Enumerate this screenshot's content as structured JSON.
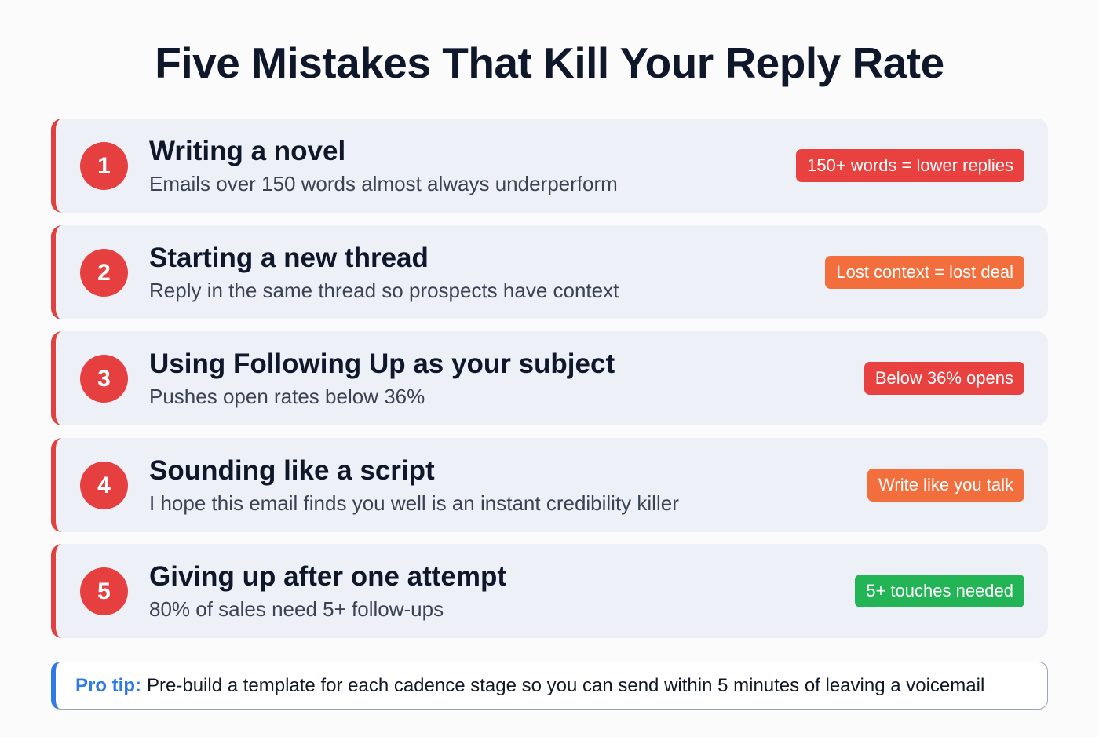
{
  "title": "Five Mistakes That Kill Your Reply Rate",
  "mistakes": [
    {
      "number": "1",
      "title": "Writing a novel",
      "subtitle": "Emails over 150 words almost always underperform",
      "badge": "150+ words = lower replies",
      "badge_color": "#e8413f"
    },
    {
      "number": "2",
      "title": "Starting a new thread",
      "subtitle": "Reply in the same thread so prospects have context",
      "badge": "Lost context = lost deal",
      "badge_color": "#f26e3c"
    },
    {
      "number": "3",
      "title": "Using Following Up as your subject",
      "subtitle": "Pushes open rates below 36%",
      "badge": "Below 36% opens",
      "badge_color": "#e8413f"
    },
    {
      "number": "4",
      "title": "Sounding like a script",
      "subtitle": "I hope this email finds you well is an instant credibility killer",
      "badge": "Write like you talk",
      "badge_color": "#f26e3c"
    },
    {
      "number": "5",
      "title": "Giving up after one attempt",
      "subtitle": "80% of sales need 5+ follow-ups",
      "badge": "5+ touches needed",
      "badge_color": "#22b455"
    }
  ],
  "tip": {
    "label": "Pro tip:",
    "text": "Pre-build a template for each cadence stage so you can send within 5 minutes of leaving a voicemail"
  }
}
